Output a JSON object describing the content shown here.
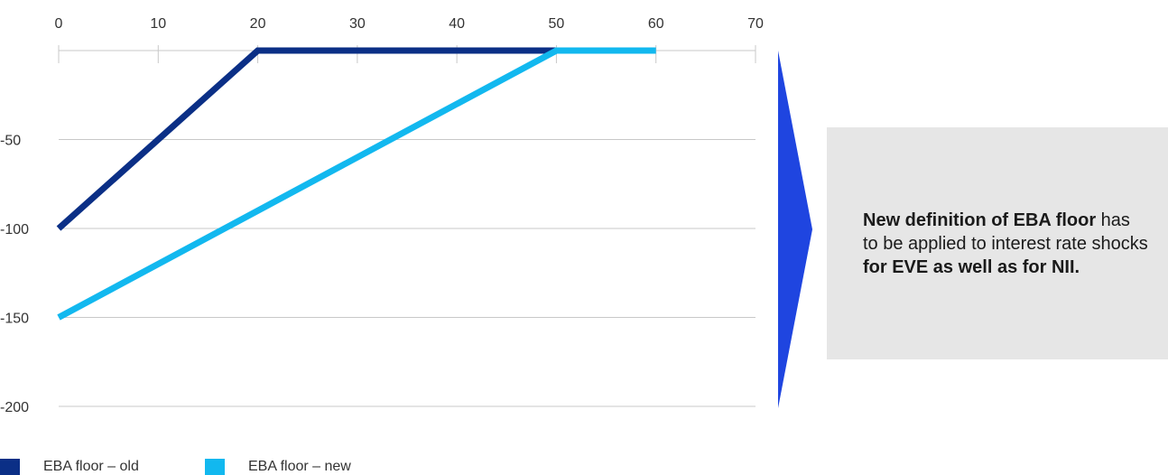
{
  "chart_data": {
    "type": "line",
    "title": "",
    "xlabel": "",
    "ylabel": "",
    "x_ticks": [
      0,
      10,
      20,
      30,
      40,
      50,
      60,
      70
    ],
    "y_ticks": [
      -50,
      -100,
      -150,
      -200
    ],
    "xlim": [
      0,
      70
    ],
    "ylim": [
      -200,
      0
    ],
    "x_axis_position": "top",
    "grid": "horizontal",
    "legend_position": "bottom-left",
    "series": [
      {
        "name": "EBA floor – old",
        "color": "#0b2f86",
        "points": [
          [
            0,
            -100
          ],
          [
            20,
            0
          ],
          [
            50,
            0
          ]
        ]
      },
      {
        "name": "EBA floor – new",
        "color": "#12b8ef",
        "points": [
          [
            0,
            -150
          ],
          [
            50,
            0
          ],
          [
            60,
            0
          ]
        ]
      }
    ]
  },
  "callout": {
    "segments": [
      {
        "text": "New definition of EBA floor",
        "bold": true
      },
      {
        "text": " has to be applied to interest rate shocks ",
        "bold": false
      },
      {
        "text": "for EVE as well as for NII.",
        "bold": true
      }
    ],
    "background": "#e6e6e6"
  },
  "arrow": {
    "color": "#1f45e0",
    "direction": "right"
  }
}
